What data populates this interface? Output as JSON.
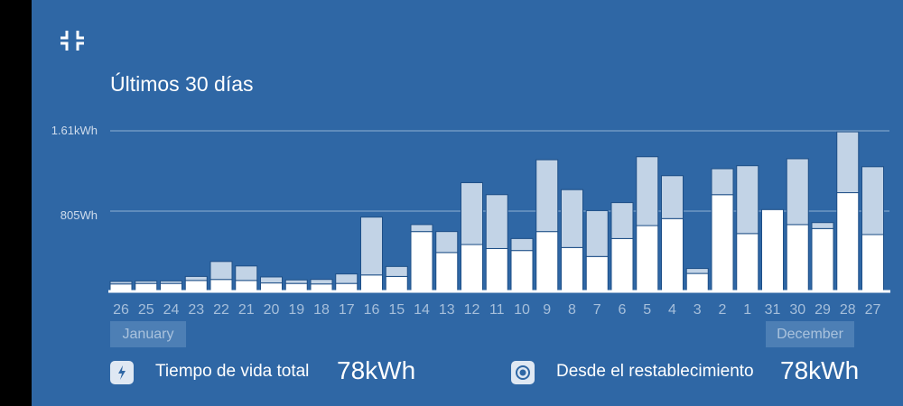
{
  "panel": {
    "title": "Últimos 30 días"
  },
  "icons": {
    "collapse": "collapse-icon",
    "lightning": "lightning-icon",
    "reset": "reset-icon"
  },
  "months": {
    "left": "January",
    "right": "December"
  },
  "stats": {
    "lifetime": {
      "label": "Tiempo de vida total",
      "value": "78kWh"
    },
    "since_reset": {
      "label": "Desde el restablecimiento",
      "value": "78kWh"
    }
  },
  "colors": {
    "background": "#2f67a5",
    "bar_light": "#c2d3e6",
    "bar_white": "#ffffff",
    "bar_mid": "#7fa2c9"
  },
  "chart_data": {
    "type": "bar",
    "stacked": true,
    "title": "Últimos 30 días",
    "y_tick_labels": [
      "805Wh",
      "1.61kWh"
    ],
    "y_ticks": [
      805,
      1610
    ],
    "ylim": [
      0,
      1610
    ],
    "unit": "Wh",
    "grid": true,
    "categories": [
      "26",
      "25",
      "24",
      "23",
      "22",
      "21",
      "20",
      "19",
      "18",
      "17",
      "16",
      "15",
      "14",
      "13",
      "12",
      "11",
      "10",
      "9",
      "8",
      "7",
      "6",
      "5",
      "4",
      "3",
      "2",
      "1",
      "31",
      "30",
      "29",
      "28",
      "27"
    ],
    "series": [
      {
        "values": [
          75,
          80,
          80,
          110,
          120,
          110,
          85,
          80,
          75,
          80,
          165,
          150,
          600,
          390,
          470,
          430,
          410,
          600,
          440,
          350,
          530,
          660,
          730,
          180,
          970,
          580,
          820,
          670,
          630,
          990,
          570
        ]
      },
      {
        "values": [
          25,
          25,
          25,
          40,
          180,
          145,
          60,
          35,
          45,
          95,
          580,
          100,
          70,
          210,
          620,
          540,
          120,
          720,
          580,
          460,
          360,
          690,
          430,
          50,
          260,
          680,
          0,
          660,
          60,
          610,
          680
        ]
      },
      {
        "values": [
          0,
          0,
          0,
          0,
          0,
          0,
          0,
          0,
          0,
          0,
          0,
          0,
          0,
          0,
          0,
          0,
          0,
          0,
          0,
          0,
          0,
          0,
          0,
          0,
          0,
          0,
          0,
          0,
          0,
          0,
          0
        ]
      }
    ]
  }
}
